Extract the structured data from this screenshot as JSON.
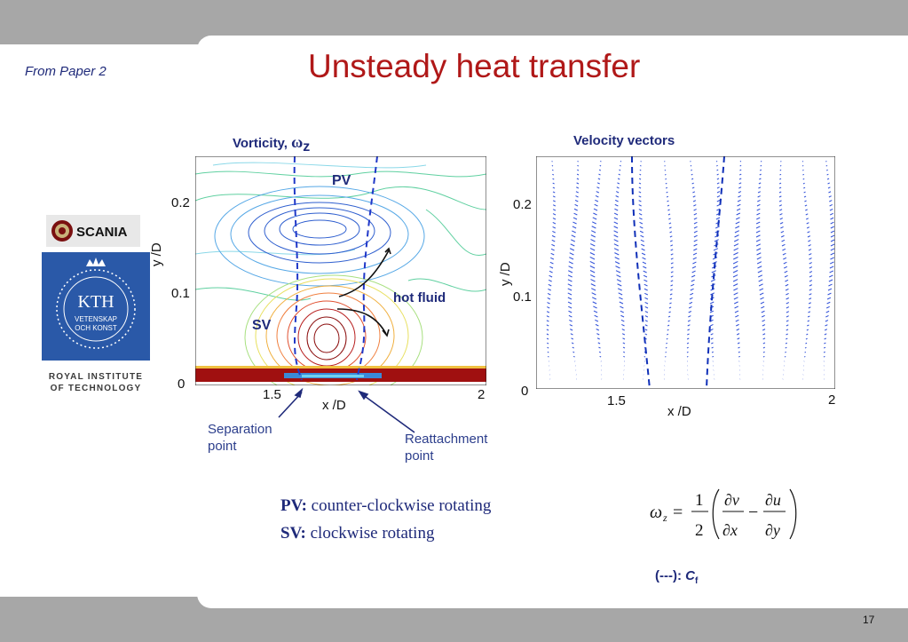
{
  "header": {
    "from_label": "From Paper 2",
    "title": "Unsteady heat transfer"
  },
  "logos": {
    "scania_text": "SCANIA",
    "kth_text": "KTH",
    "kth_motto_1": "VETENSKAP",
    "kth_motto_2": "OCH KONST",
    "institute_line1": "ROYAL INSTITUTE",
    "institute_line2": "OF TECHNOLOGY"
  },
  "vorticity_plot": {
    "heading": "Vorticity, ",
    "heading_symbol": "ω",
    "heading_sub": "z",
    "ylabel": "y /D",
    "xlabel": "x /D",
    "yticks": [
      "0.2",
      "0.1",
      "0"
    ],
    "xticks": [
      "1.5",
      "2"
    ],
    "label_pv": "PV",
    "label_sv": "SV",
    "label_hot": "hot fluid"
  },
  "velocity_plot": {
    "heading": "Velocity vectors",
    "ylabel": "y /D",
    "xlabel": "x /D",
    "yticks": [
      "0.2",
      "0.1",
      "0"
    ],
    "xticks": [
      "1.5",
      "2"
    ]
  },
  "annotations": {
    "separation_1": "Separation",
    "separation_2": "point",
    "reattachment_1": "Reattachment",
    "reattachment_2": "point"
  },
  "definitions": {
    "pv_key": "PV:",
    "pv_text": " counter-clockwise rotating",
    "sv_key": "SV:",
    "sv_text": " clockwise rotating"
  },
  "cf_legend": {
    "prefix": "(---): ",
    "symbol": "C",
    "sub": "f"
  },
  "page_number": "17",
  "colors": {
    "title_red": "#b01818",
    "navy": "#1f2a7a",
    "kth_blue": "#2a59a8",
    "bar_gray": "#a7a7a7"
  }
}
